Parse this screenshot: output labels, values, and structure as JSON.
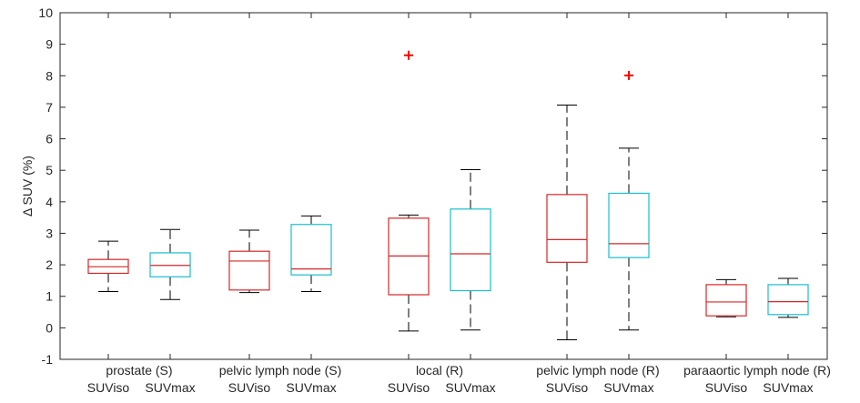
{
  "chart_data": {
    "type": "boxplot",
    "ylabel": "Δ SUV (%)",
    "ylim": [
      -1,
      10
    ],
    "yticks": [
      -1,
      0,
      1,
      2,
      3,
      4,
      5,
      6,
      7,
      8,
      9,
      10
    ],
    "grid": false,
    "groups": [
      {
        "label": "prostate (S)",
        "boxes": [
          {
            "label": "SUViso",
            "color": "#d62728",
            "whisker_low": 1.15,
            "q1": 1.73,
            "median": 1.94,
            "q3": 2.17,
            "whisker_high": 2.75,
            "outliers": []
          },
          {
            "label": "SUVmax",
            "color": "#17becf",
            "whisker_low": 0.9,
            "q1": 1.62,
            "median": 1.98,
            "q3": 2.38,
            "whisker_high": 3.12,
            "outliers": []
          }
        ]
      },
      {
        "label": "pelvic lymph node (S)",
        "boxes": [
          {
            "label": "SUViso",
            "color": "#d62728",
            "whisker_low": 1.12,
            "q1": 1.2,
            "median": 2.12,
            "q3": 2.43,
            "whisker_high": 3.1,
            "outliers": []
          },
          {
            "label": "SUVmax",
            "color": "#17becf",
            "whisker_low": 1.15,
            "q1": 1.68,
            "median": 1.87,
            "q3": 3.28,
            "whisker_high": 3.55,
            "outliers": []
          }
        ]
      },
      {
        "label": "local (R)",
        "boxes": [
          {
            "label": "SUViso",
            "color": "#d62728",
            "whisker_low": -0.1,
            "q1": 1.05,
            "median": 2.28,
            "q3": 3.48,
            "whisker_high": 3.58,
            "outliers": [
              8.65
            ]
          },
          {
            "label": "SUVmax",
            "color": "#17becf",
            "whisker_low": -0.07,
            "q1": 1.18,
            "median": 2.35,
            "q3": 3.77,
            "whisker_high": 5.02,
            "outliers": []
          }
        ]
      },
      {
        "label": "pelvic lymph node (R)",
        "boxes": [
          {
            "label": "SUViso",
            "color": "#d62728",
            "whisker_low": -0.38,
            "q1": 2.08,
            "median": 2.8,
            "q3": 4.23,
            "whisker_high": 7.07,
            "outliers": []
          },
          {
            "label": "SUVmax",
            "color": "#17becf",
            "whisker_low": -0.07,
            "q1": 2.23,
            "median": 2.67,
            "q3": 4.27,
            "whisker_high": 5.7,
            "outliers": [
              8.01
            ]
          }
        ]
      },
      {
        "label": "paraaortic lymph node (R)",
        "boxes": [
          {
            "label": "SUViso",
            "color": "#d62728",
            "whisker_low": 0.35,
            "q1": 0.38,
            "median": 0.82,
            "q3": 1.37,
            "whisker_high": 1.53,
            "outliers": []
          },
          {
            "label": "SUVmax",
            "color": "#17becf",
            "whisker_low": 0.33,
            "q1": 0.42,
            "median": 0.83,
            "q3": 1.37,
            "whisker_high": 1.57,
            "outliers": []
          }
        ]
      }
    ]
  },
  "colors": {
    "axis": "#262626",
    "whisker": "#000000",
    "outlier": "#ff0000"
  }
}
